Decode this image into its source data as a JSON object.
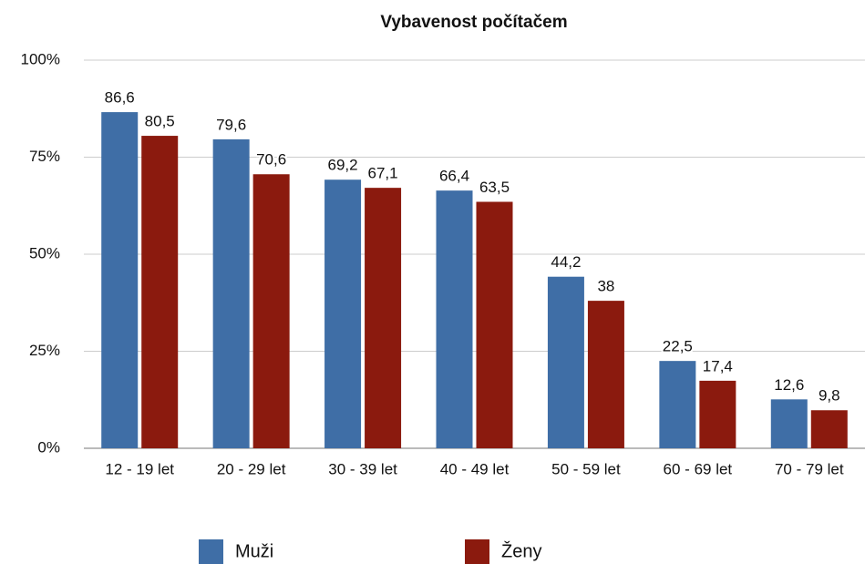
{
  "chart_data": {
    "type": "bar",
    "title": "Vybavenost počítačem",
    "categories": [
      "12 - 19 let",
      "20 - 29 let",
      "30 - 39 let",
      "40 - 49 let",
      "50 - 59 let",
      "60 - 69 let",
      "70 - 79 let"
    ],
    "series": [
      {
        "name": "Muži",
        "color": "#3f6ea6",
        "values": [
          86.6,
          79.6,
          69.2,
          66.4,
          44.2,
          22.5,
          12.6
        ],
        "value_labels": [
          "86,6",
          "79,6",
          "69,2",
          "66,4",
          "44,2",
          "22,5",
          "12,6"
        ]
      },
      {
        "name": "Ženy",
        "color": "#8b1a0e",
        "values": [
          80.5,
          70.6,
          67.1,
          63.5,
          38,
          17.4,
          9.8
        ],
        "value_labels": [
          "80,5",
          "70,6",
          "67,1",
          "63,5",
          "38",
          "17,4",
          "9,8"
        ]
      }
    ],
    "ylim": [
      0,
      100
    ],
    "yticks": [
      {
        "value": 0,
        "label": "0%"
      },
      {
        "value": 25,
        "label": "25%"
      },
      {
        "value": 50,
        "label": "50%"
      },
      {
        "value": 75,
        "label": "75%"
      },
      {
        "value": 100,
        "label": "100%"
      }
    ],
    "grid": true,
    "legend": "bottom"
  }
}
